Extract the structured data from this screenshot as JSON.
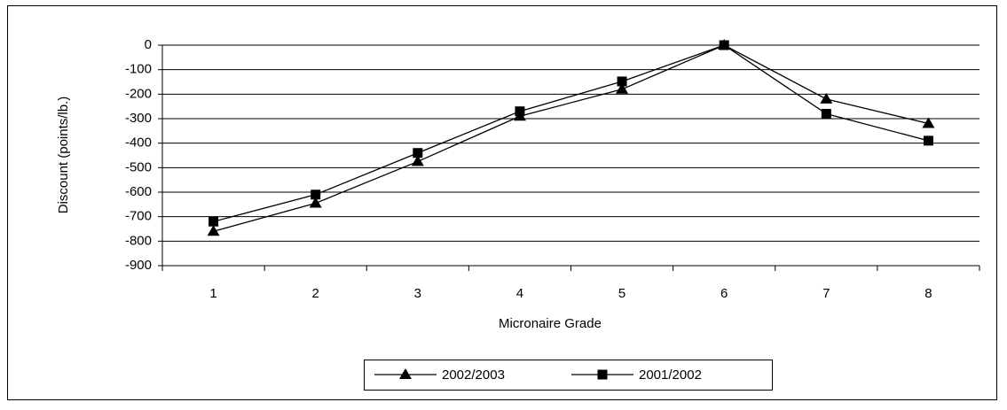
{
  "chart_data": {
    "type": "line",
    "x_label": "Micronaire Grade",
    "y_label": "Discount (points/lb.)",
    "categories": [
      "1",
      "2",
      "3",
      "4",
      "5",
      "6",
      "7",
      "8"
    ],
    "series": [
      {
        "name": "2002/2003",
        "color": "#000000",
        "marker": "triangle",
        "values": [
          -760,
          -645,
          -475,
          -290,
          -180,
          0,
          -220,
          -320
        ]
      },
      {
        "name": "2001/2002",
        "color": "#000000",
        "marker": "square",
        "values": [
          -720,
          -610,
          -440,
          -270,
          -148,
          0,
          -280,
          -390
        ]
      }
    ],
    "ylim": [
      -900,
      0
    ],
    "yticks": [
      -900,
      -800,
      -700,
      -600,
      -500,
      -400,
      -300,
      -200,
      -100,
      0
    ],
    "grid": true,
    "legend": "bottom"
  }
}
